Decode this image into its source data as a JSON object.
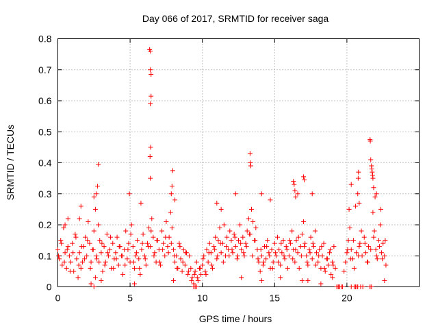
{
  "chart_data": {
    "type": "scatter",
    "title": "Day 066 of 2017, SRMTID for receiver saga",
    "xlabel": "GPS time / hours",
    "ylabel": "SRMTID / TECUs",
    "xlim": [
      0,
      25
    ],
    "ylim": [
      0,
      0.8
    ],
    "xticks": [
      0,
      5,
      10,
      15,
      20
    ],
    "xtick_labels": [
      "0",
      "5",
      "10",
      "15",
      "20"
    ],
    "yticks": [
      0,
      0.1,
      0.2,
      0.3,
      0.4,
      0.5,
      0.6,
      0.7,
      0.8
    ],
    "ytick_labels": [
      "0",
      "0.1",
      "0.2",
      "0.3",
      "0.4",
      "0.5",
      "0.6",
      "0.7",
      "0.8"
    ],
    "grid": true,
    "marker": "+",
    "series_color": "#ff0000",
    "series": [
      {
        "name": "SRMTID",
        "x": [
          0.0,
          0.1,
          0.2,
          0.3,
          0.4,
          0.5,
          0.6,
          0.7,
          0.8,
          0.9,
          1.0,
          1.1,
          1.2,
          1.3,
          1.4,
          1.5,
          1.6,
          1.7,
          1.8,
          1.9,
          2.0,
          2.1,
          2.2,
          2.3,
          2.4,
          2.5,
          2.6,
          2.7,
          2.8,
          2.9,
          3.0,
          3.1,
          3.2,
          3.3,
          3.4,
          3.5,
          3.6,
          3.7,
          3.8,
          3.9,
          4.0,
          4.1,
          4.2,
          4.3,
          4.4,
          4.5,
          4.6,
          4.7,
          4.8,
          4.9,
          5.0,
          5.1,
          5.2,
          5.3,
          5.4,
          5.5,
          5.6,
          5.7,
          5.8,
          5.9,
          6.0,
          6.1,
          6.2,
          6.3,
          6.4,
          6.5,
          6.6,
          6.7,
          6.8,
          6.9,
          7.0,
          7.1,
          7.2,
          7.3,
          7.4,
          7.5,
          7.6,
          7.7,
          7.8,
          7.9,
          8.0,
          8.1,
          8.2,
          8.3,
          8.4,
          8.5,
          8.6,
          8.7,
          8.8,
          8.9,
          9.0,
          9.1,
          9.2,
          9.3,
          9.4,
          9.5,
          9.6,
          9.7,
          9.8,
          9.9,
          10.0,
          10.1,
          10.2,
          10.3,
          10.4,
          10.5,
          10.6,
          10.7,
          10.8,
          10.9,
          11.0,
          11.1,
          11.2,
          11.3,
          11.4,
          11.5,
          11.6,
          11.7,
          11.8,
          11.9,
          12.0,
          12.1,
          12.2,
          12.3,
          12.4,
          12.5,
          12.6,
          12.7,
          12.8,
          12.9,
          13.0,
          13.1,
          13.2,
          13.3,
          13.4,
          13.5,
          13.6,
          13.7,
          13.8,
          13.9,
          14.0,
          14.1,
          14.2,
          14.3,
          14.4,
          14.5,
          14.6,
          14.7,
          14.8,
          14.9,
          15.0,
          15.1,
          15.2,
          15.3,
          15.4,
          15.5,
          15.6,
          15.7,
          15.8,
          15.9,
          16.0,
          16.1,
          16.2,
          16.3,
          16.4,
          16.5,
          16.6,
          16.7,
          16.8,
          16.9,
          17.0,
          17.1,
          17.2,
          17.3,
          17.4,
          17.5,
          17.6,
          17.7,
          17.8,
          17.9,
          18.0,
          18.1,
          18.2,
          18.3,
          18.4,
          18.5,
          18.6,
          18.7,
          18.8,
          18.9,
          19.0,
          19.1,
          19.2,
          19.4,
          19.5,
          19.6,
          19.7,
          19.8,
          19.9,
          20.0,
          20.1,
          20.2,
          20.3,
          20.4,
          20.5,
          20.6,
          20.7,
          20.8,
          20.9,
          21.0,
          21.1,
          21.2,
          21.3,
          21.4,
          21.5,
          21.6,
          21.7,
          21.8,
          21.9,
          22.0,
          22.1,
          22.2,
          22.3,
          22.4,
          22.5,
          22.6,
          22.7,
          0.05,
          0.25,
          0.45,
          0.65,
          0.85,
          1.05,
          1.25,
          1.45,
          1.65,
          1.85,
          2.05,
          2.25,
          2.45,
          2.65,
          2.85,
          3.05,
          3.25,
          3.45,
          3.65,
          3.85,
          4.05,
          4.25,
          4.45,
          4.65,
          4.85,
          5.05,
          5.25,
          5.45,
          5.65,
          5.85,
          6.05,
          6.25,
          6.45,
          6.65,
          6.85,
          7.05,
          7.25,
          7.45,
          7.65,
          7.85,
          8.05,
          8.25,
          8.45,
          8.65,
          8.85,
          9.05,
          9.25,
          9.45,
          9.65,
          9.85,
          10.05,
          10.25,
          10.45,
          10.65,
          10.85,
          11.05,
          11.25,
          11.45,
          11.65,
          11.85,
          12.05,
          12.25,
          12.45,
          12.65,
          12.85,
          13.05,
          13.25,
          13.45,
          13.65,
          13.85,
          14.05,
          14.25,
          14.45,
          14.65,
          14.85,
          15.05,
          15.25,
          15.45,
          15.65,
          15.85,
          16.05,
          16.25,
          16.45,
          16.65,
          16.85,
          17.05,
          17.25,
          17.45,
          17.65,
          17.85,
          18.05,
          18.25,
          18.45,
          18.65,
          18.85,
          19.05,
          20.05,
          20.25,
          20.45,
          20.65,
          20.85,
          21.05,
          21.25,
          21.45,
          21.65,
          21.85,
          22.05,
          22.25,
          22.45,
          22.65,
          0.5,
          0.7,
          1.5,
          1.6,
          2.5,
          2.6,
          2.65,
          2.75,
          2.8,
          4.95,
          5.75,
          6.35,
          6.4,
          6.4,
          6.45,
          6.45,
          6.4,
          6.42,
          6.38,
          6.4,
          7.9,
          7.85,
          7.95,
          8.1,
          11.0,
          11.3,
          12.3,
          13.3,
          13.32,
          13.35,
          14.1,
          14.7,
          16.3,
          16.35,
          16.4,
          16.45,
          16.6,
          17.0,
          17.05,
          17.6,
          20.15,
          20.3,
          20.6,
          20.75,
          20.78,
          20.8,
          20.85,
          21.6,
          21.62,
          21.65,
          21.7,
          21.72,
          21.75,
          21.78,
          21.8,
          21.85,
          21.95,
          22.05,
          22.35,
          19.3,
          19.4,
          19.5,
          20.3,
          20.5,
          20.75,
          20.95,
          21.6,
          9.4,
          9.5,
          9.6,
          2.3,
          2.5,
          3.0,
          5.3,
          8.0,
          12.7,
          14.1,
          15.4,
          16.9,
          19.0,
          18.2,
          17.3,
          22.6
        ],
        "y": [
          0.12,
          0.09,
          0.15,
          0.07,
          0.19,
          0.11,
          0.06,
          0.13,
          0.1,
          0.08,
          0.14,
          0.05,
          0.17,
          0.09,
          0.03,
          0.11,
          0.06,
          0.08,
          0.13,
          0.16,
          0.1,
          0.21,
          0.14,
          0.08,
          0.12,
          0.18,
          0.03,
          0.09,
          0.2,
          0.15,
          0.11,
          0.05,
          0.13,
          0.08,
          0.17,
          0.1,
          0.12,
          0.06,
          0.14,
          0.09,
          0.11,
          0.16,
          0.07,
          0.13,
          0.1,
          0.04,
          0.12,
          0.18,
          0.09,
          0.14,
          0.08,
          0.2,
          0.13,
          0.06,
          0.1,
          0.15,
          0.09,
          0.04,
          0.12,
          0.17,
          0.1,
          0.07,
          0.14,
          0.19,
          0.13,
          0.22,
          0.16,
          0.11,
          0.08,
          0.15,
          0.12,
          0.07,
          0.18,
          0.14,
          0.1,
          0.21,
          0.13,
          0.16,
          0.24,
          0.19,
          0.12,
          0.08,
          0.1,
          0.06,
          0.14,
          0.09,
          0.05,
          0.12,
          0.07,
          0.11,
          0.04,
          0.1,
          0.06,
          0.03,
          0.01,
          0.05,
          0.08,
          0.02,
          0.06,
          0.04,
          0.07,
          0.1,
          0.05,
          0.12,
          0.08,
          0.14,
          0.11,
          0.06,
          0.13,
          0.16,
          0.09,
          0.15,
          0.19,
          0.11,
          0.14,
          0.2,
          0.1,
          0.16,
          0.12,
          0.18,
          0.15,
          0.11,
          0.17,
          0.13,
          0.09,
          0.15,
          0.2,
          0.12,
          0.16,
          0.1,
          0.14,
          0.18,
          0.22,
          0.17,
          0.25,
          0.21,
          0.15,
          0.19,
          0.12,
          0.08,
          0.05,
          0.1,
          0.07,
          0.13,
          0.09,
          0.15,
          0.11,
          0.06,
          0.12,
          0.08,
          0.14,
          0.1,
          0.16,
          0.12,
          0.07,
          0.11,
          0.15,
          0.09,
          0.13,
          0.06,
          0.1,
          0.14,
          0.18,
          0.12,
          0.08,
          0.15,
          0.11,
          0.06,
          0.13,
          0.17,
          0.21,
          0.14,
          0.1,
          0.07,
          0.12,
          0.16,
          0.09,
          0.13,
          0.18,
          0.11,
          0.08,
          0.12,
          0.06,
          0.1,
          0.14,
          0.05,
          0.09,
          0.07,
          0.11,
          0.04,
          0.08,
          0.13,
          0.06,
          0.0,
          0.0,
          0.0,
          0.0,
          0.05,
          0.08,
          0.11,
          0.15,
          0.19,
          0.12,
          0.09,
          0.06,
          0.0,
          0.0,
          0.1,
          0.14,
          0.18,
          0.0,
          0.16,
          0.11,
          0.08,
          0.13,
          0.0,
          0.0,
          0.24,
          0.18,
          0.12,
          0.09,
          0.15,
          0.2,
          0.11,
          0.14,
          0.1,
          0.07,
          0.1,
          0.14,
          0.08,
          0.12,
          0.05,
          0.11,
          0.16,
          0.07,
          0.13,
          0.09,
          0.15,
          0.06,
          0.12,
          0.1,
          0.08,
          0.14,
          0.07,
          0.11,
          0.16,
          0.06,
          0.09,
          0.13,
          0.1,
          0.07,
          0.12,
          0.17,
          0.08,
          0.11,
          0.06,
          0.14,
          0.09,
          0.13,
          0.18,
          0.1,
          0.15,
          0.08,
          0.12,
          0.16,
          0.11,
          0.14,
          0.1,
          0.06,
          0.13,
          0.08,
          0.11,
          0.05,
          0.02,
          0.04,
          0.03,
          0.06,
          0.09,
          0.04,
          0.11,
          0.07,
          0.12,
          0.1,
          0.14,
          0.08,
          0.13,
          0.1,
          0.12,
          0.16,
          0.1,
          0.14,
          0.11,
          0.13,
          0.17,
          0.1,
          0.15,
          0.09,
          0.12,
          0.08,
          0.13,
          0.1,
          0.06,
          0.11,
          0.08,
          0.14,
          0.1,
          0.12,
          0.15,
          0.09,
          0.12,
          0.16,
          0.1,
          0.13,
          0.08,
          0.11,
          0.14,
          0.07,
          0.1,
          0.13,
          0.06,
          0.09,
          0.12,
          0.07,
          0.12,
          0.09,
          0.15,
          0.11,
          0.13,
          0.1,
          0.14,
          0.08,
          0.12,
          0.16,
          0.1,
          0.13,
          0.09,
          0.15,
          0.2,
          0.22,
          0.22,
          0.26,
          0.29,
          0.25,
          0.3,
          0.325,
          0.395,
          0.3,
          0.27,
          0.765,
          0.76,
          0.7,
          0.685,
          0.615,
          0.59,
          0.45,
          0.42,
          0.35,
          0.325,
          0.3,
          0.375,
          0.28,
          0.27,
          0.25,
          0.3,
          0.43,
          0.4,
          0.39,
          0.3,
          0.28,
          0.34,
          0.33,
          0.31,
          0.29,
          0.3,
          0.355,
          0.345,
          0.3,
          0.25,
          0.33,
          0.26,
          0.3,
          0.35,
          0.37,
          0.27,
          0.475,
          0.47,
          0.41,
          0.39,
          0.38,
          0.37,
          0.36,
          0.35,
          0.32,
          0.29,
          0.3,
          0.25,
          0.0,
          0.0,
          0.0,
          0.0,
          0.0,
          0.0,
          0.0,
          0.0,
          0.0,
          0.0,
          0.0,
          0.01,
          0.0,
          0.02,
          0.01,
          0.02,
          0.03,
          0.02,
          0.03,
          0.02,
          0.03,
          0.01,
          0.02,
          0.02
        ]
      }
    ]
  }
}
